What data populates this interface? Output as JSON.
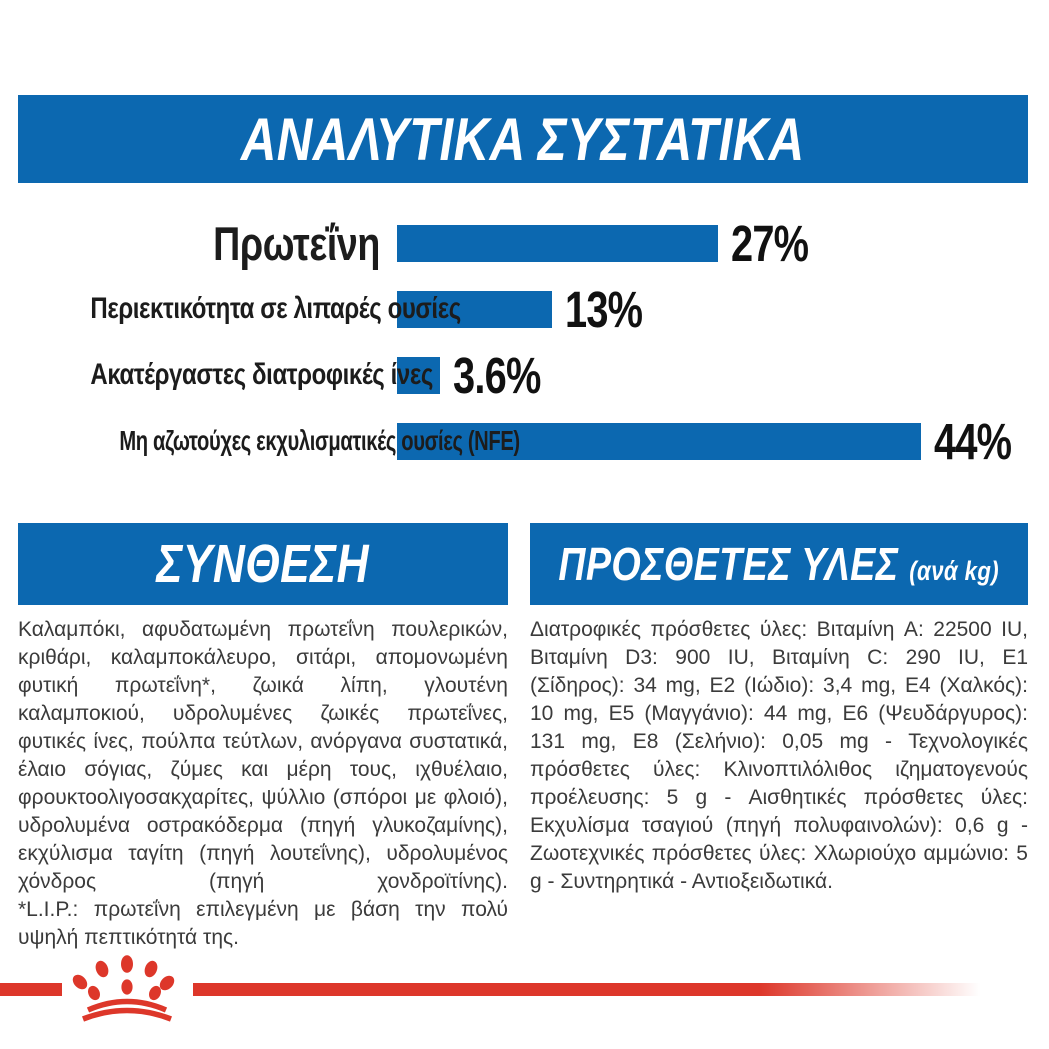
{
  "colors": {
    "banner_blue": "#0c68b0",
    "bar_blue": "#0c68b0",
    "brand_red": "#dd372a",
    "heading_text": "#ffffff",
    "body_text": "#3b3b3b"
  },
  "analytical": {
    "title": "ΑΝΑΛΥΤΙΚΑ ΣΥΣΤΑΤΙΚΑ"
  },
  "chart_data": {
    "type": "bar",
    "orientation": "horizontal",
    "title": "ΑΝΑΛΥΤΙΚΑ ΣΥΣΤΑΤΙΚΑ",
    "categories": [
      "Πρωτεΐνη",
      "Περιεκτικότητα σε λιπαρές ουσίες",
      "Ακατέργαστες διατροφικές ίνες",
      "Μη αζωτούχες εκχυλισματικές ουσίες (NFE)"
    ],
    "values": [
      27,
      13,
      3.6,
      44
    ],
    "value_labels": [
      "27%",
      "13%",
      "3.6%",
      "44%"
    ],
    "unit": "%",
    "xlim": [
      0,
      50
    ],
    "bar_color": "#0c68b0",
    "grid": false,
    "legend": false,
    "value_label_position": "right-of-bar"
  },
  "composition": {
    "title": "ΣΥΝΘΕΣΗ",
    "body": "Καλαμπόκι, αφυδατωμένη πρωτεΐνη πουλερικών, κριθάρι, καλαμποκάλευρο, σιτάρι, απομονωμένη φυτική πρωτεΐνη*, ζωικά λίπη, γλουτένη καλαμποκιού, υδρολυμένες ζωικές πρωτεΐνες, φυτικές ίνες, πούλπα τεύτλων, ανόργανα συστατικά, έλαιο σόγιας, ζύμες και μέρη τους, ιχθυέλαιο, φρουκτοολιγοσακχαρίτες, ψύλλιο (σπόροι με φλοιό), υδρολυμένα οστρακόδερμα (πηγή γλυκοζαμίνης), εκχύλισμα ταγίτη (πηγή λουτεΐνης), υδρολυμένος χόνδρος (πηγή χονδροϊτίνης).",
    "note": "*L.I.P.: πρωτεΐνη επιλεγμένη με βάση την πολύ υψηλή πεπτικότητά της."
  },
  "additives": {
    "title": "ΠΡΟΣΘΕΤΕΣ ΥΛΕΣ",
    "title_suffix": "(ανά kg)",
    "body": "Διατροφικές πρόσθετες ύλες: Βιταμίνη A: 22500 IU, Βιταμίνη D3: 900 IU, Βιταμίνη C: 290 IU, E1 (Σίδηρος): 34 mg, E2 (Ιώδιο): 3,4 mg, E4 (Χαλκός): 10 mg, E5 (Μαγγάνιο): 44 mg, E6 (Ψευδάργυρος): 131 mg, E8 (Σελήνιο): 0,05 mg - Τεχνολογικές πρόσθετες ύλες: Κλινοπτιλόλιθος ιζηματογενούς προέλευσης: 5 g - Αισθητικές πρόσθετες ύλες: Εκχυλίσμα τσαγιού (πηγή πολυφαινολών): 0,6 g - Ζωοτεχνικές πρόσθετες ύλες: Χλωριούχο αμμώνιο: 5 g - Συντηρητικά - Αντιοξειδωτικά."
  },
  "footer": {
    "logo": "royal-canin-crown-paw"
  }
}
